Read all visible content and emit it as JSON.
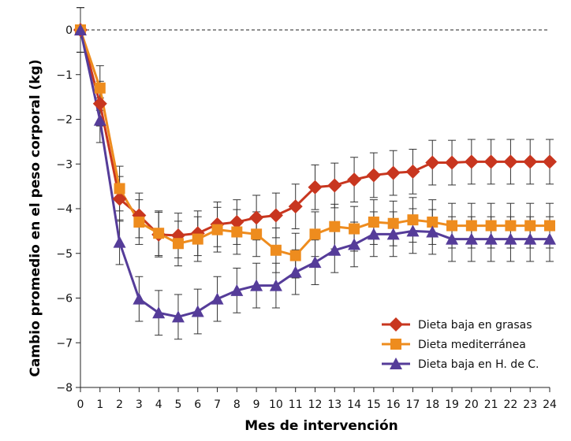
{
  "chart_data": {
    "type": "line",
    "xlabel": "Mes de intervención",
    "ylabel": "Cambio promedio en el peso corporal (kg)",
    "xlim": [
      0,
      24
    ],
    "ylim": [
      -8,
      0
    ],
    "x": [
      0,
      1,
      2,
      3,
      4,
      5,
      6,
      7,
      8,
      9,
      10,
      11,
      12,
      13,
      14,
      15,
      16,
      17,
      18,
      19,
      20,
      21,
      22,
      23,
      24
    ],
    "x_tick_labels": [
      "0",
      "1",
      "2",
      "3",
      "4",
      "5",
      "6",
      "7",
      "8",
      "9",
      "10",
      "11",
      "12",
      "13",
      "14",
      "15",
      "16",
      "17",
      "18",
      "19",
      "20",
      "21",
      "22",
      "23",
      "24"
    ],
    "y_ticks": [
      0,
      -1,
      -2,
      -3,
      -4,
      -5,
      -6,
      -7,
      -8
    ],
    "y_tick_labels": [
      "0",
      "−1",
      "−2",
      "−3",
      "−4",
      "−5",
      "−6",
      "−7",
      "−8"
    ],
    "reference_line": {
      "y": 0,
      "style": "dashed"
    },
    "grid": false,
    "legend_position": "bottom-right",
    "series": [
      {
        "name": "Dieta baja en grasas",
        "color": "#c8361f",
        "marker": "diamond",
        "values": [
          0,
          -1.65,
          -3.78,
          -4.15,
          -4.58,
          -4.6,
          -4.55,
          -4.35,
          -4.3,
          -4.2,
          -4.15,
          -3.95,
          -3.52,
          -3.48,
          -3.35,
          -3.25,
          -3.2,
          -3.17,
          -2.97,
          -2.97,
          -2.95,
          -2.95,
          -2.95,
          -2.95,
          -2.95
        ],
        "error": [
          0.5,
          0.5,
          0.5,
          0.5,
          0.5,
          0.5,
          0.5,
          0.5,
          0.5,
          0.5,
          0.5,
          0.5,
          0.5,
          0.5,
          0.5,
          0.5,
          0.5,
          0.5,
          0.5,
          0.5,
          0.5,
          0.5,
          0.5,
          0.5,
          0.5
        ]
      },
      {
        "name": "Dieta mediterránea",
        "color": "#ee8c1e",
        "marker": "square",
        "values": [
          0,
          -1.3,
          -3.55,
          -4.3,
          -4.55,
          -4.78,
          -4.68,
          -4.47,
          -4.52,
          -4.57,
          -4.93,
          -5.05,
          -4.57,
          -4.4,
          -4.45,
          -4.3,
          -4.33,
          -4.25,
          -4.3,
          -4.38,
          -4.38,
          -4.38,
          -4.38,
          -4.38,
          -4.38
        ],
        "error": [
          0.5,
          0.5,
          0.5,
          0.5,
          0.5,
          0.5,
          0.5,
          0.5,
          0.5,
          0.5,
          0.5,
          0.5,
          0.5,
          0.5,
          0.5,
          0.5,
          0.5,
          0.5,
          0.5,
          0.5,
          0.5,
          0.5,
          0.5,
          0.5,
          0.5
        ]
      },
      {
        "name": "Dieta baja en H. de C.",
        "color": "#553c99",
        "marker": "triangle",
        "values": [
          0,
          -2.02,
          -4.75,
          -6.02,
          -6.33,
          -6.42,
          -6.3,
          -6.02,
          -5.83,
          -5.72,
          -5.72,
          -5.42,
          -5.2,
          -4.93,
          -4.8,
          -4.57,
          -4.57,
          -4.5,
          -4.52,
          -4.68,
          -4.68,
          -4.68,
          -4.68,
          -4.68,
          -4.68
        ],
        "error": [
          0.5,
          0.5,
          0.5,
          0.5,
          0.5,
          0.5,
          0.5,
          0.5,
          0.5,
          0.5,
          0.5,
          0.5,
          0.5,
          0.5,
          0.5,
          0.5,
          0.5,
          0.5,
          0.5,
          0.5,
          0.5,
          0.5,
          0.5,
          0.5,
          0.5
        ]
      }
    ]
  }
}
